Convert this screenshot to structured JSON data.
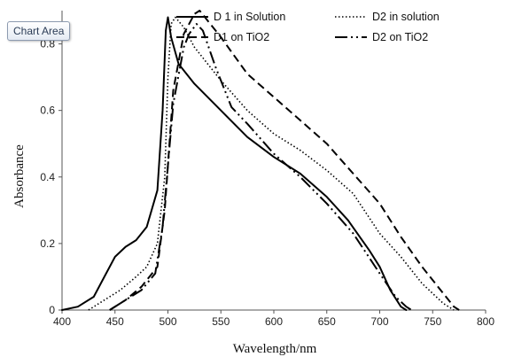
{
  "tooltip": {
    "text": "Chart Area"
  },
  "chart_data": {
    "type": "line",
    "xlabel": "Wavelength/nm",
    "ylabel": "Absorbance",
    "xlim": [
      400,
      800
    ],
    "ylim": [
      0,
      0.9
    ],
    "xticks": [
      400,
      450,
      500,
      550,
      600,
      650,
      700,
      750,
      800
    ],
    "yticks": [
      0,
      0.2,
      0.4,
      0.6,
      0.8
    ],
    "grid": false,
    "legend_position": "top",
    "series": [
      {
        "name": "D 1 in Solution",
        "style": "solid",
        "color": "#000000",
        "points": [
          [
            400,
            0
          ],
          [
            415,
            0.01
          ],
          [
            430,
            0.04
          ],
          [
            440,
            0.1
          ],
          [
            450,
            0.16
          ],
          [
            460,
            0.19
          ],
          [
            470,
            0.21
          ],
          [
            480,
            0.25
          ],
          [
            490,
            0.36
          ],
          [
            495,
            0.6
          ],
          [
            498,
            0.84
          ],
          [
            500,
            0.88
          ],
          [
            503,
            0.82
          ],
          [
            510,
            0.74
          ],
          [
            525,
            0.68
          ],
          [
            550,
            0.6
          ],
          [
            575,
            0.52
          ],
          [
            600,
            0.46
          ],
          [
            625,
            0.41
          ],
          [
            650,
            0.34
          ],
          [
            670,
            0.27
          ],
          [
            690,
            0.18
          ],
          [
            700,
            0.13
          ],
          [
            710,
            0.06
          ],
          [
            720,
            0.01
          ],
          [
            725,
            0
          ]
        ]
      },
      {
        "name": "D2 in solution",
        "style": "dotted",
        "color": "#000000",
        "points": [
          [
            425,
            0
          ],
          [
            440,
            0.03
          ],
          [
            455,
            0.06
          ],
          [
            470,
            0.1
          ],
          [
            480,
            0.13
          ],
          [
            490,
            0.2
          ],
          [
            497,
            0.4
          ],
          [
            500,
            0.7
          ],
          [
            503,
            0.86
          ],
          [
            507,
            0.88
          ],
          [
            515,
            0.85
          ],
          [
            525,
            0.79
          ],
          [
            550,
            0.69
          ],
          [
            575,
            0.6
          ],
          [
            600,
            0.53
          ],
          [
            625,
            0.48
          ],
          [
            650,
            0.42
          ],
          [
            675,
            0.35
          ],
          [
            700,
            0.23
          ],
          [
            720,
            0.16
          ],
          [
            740,
            0.08
          ],
          [
            760,
            0.02
          ],
          [
            770,
            0
          ]
        ]
      },
      {
        "name": "D1 on TiO2",
        "style": "dashed",
        "color": "#000000",
        "points": [
          [
            445,
            0
          ],
          [
            460,
            0.03
          ],
          [
            475,
            0.07
          ],
          [
            490,
            0.13
          ],
          [
            497,
            0.3
          ],
          [
            505,
            0.66
          ],
          [
            515,
            0.83
          ],
          [
            525,
            0.89
          ],
          [
            530,
            0.9
          ],
          [
            540,
            0.86
          ],
          [
            550,
            0.82
          ],
          [
            575,
            0.71
          ],
          [
            600,
            0.64
          ],
          [
            625,
            0.57
          ],
          [
            650,
            0.5
          ],
          [
            675,
            0.41
          ],
          [
            700,
            0.32
          ],
          [
            720,
            0.22
          ],
          [
            740,
            0.13
          ],
          [
            760,
            0.05
          ],
          [
            770,
            0.01
          ],
          [
            775,
            0
          ]
        ]
      },
      {
        "name": "D2 on TiO2",
        "style": "dash-dot-dot",
        "color": "#000000",
        "points": [
          [
            445,
            0
          ],
          [
            460,
            0.03
          ],
          [
            475,
            0.06
          ],
          [
            488,
            0.11
          ],
          [
            495,
            0.25
          ],
          [
            505,
            0.62
          ],
          [
            515,
            0.79
          ],
          [
            520,
            0.83
          ],
          [
            527,
            0.86
          ],
          [
            533,
            0.84
          ],
          [
            545,
            0.73
          ],
          [
            560,
            0.61
          ],
          [
            575,
            0.56
          ],
          [
            600,
            0.47
          ],
          [
            625,
            0.4
          ],
          [
            650,
            0.32
          ],
          [
            675,
            0.23
          ],
          [
            700,
            0.11
          ],
          [
            715,
            0.04
          ],
          [
            725,
            0.01
          ],
          [
            730,
            0
          ]
        ]
      }
    ]
  }
}
